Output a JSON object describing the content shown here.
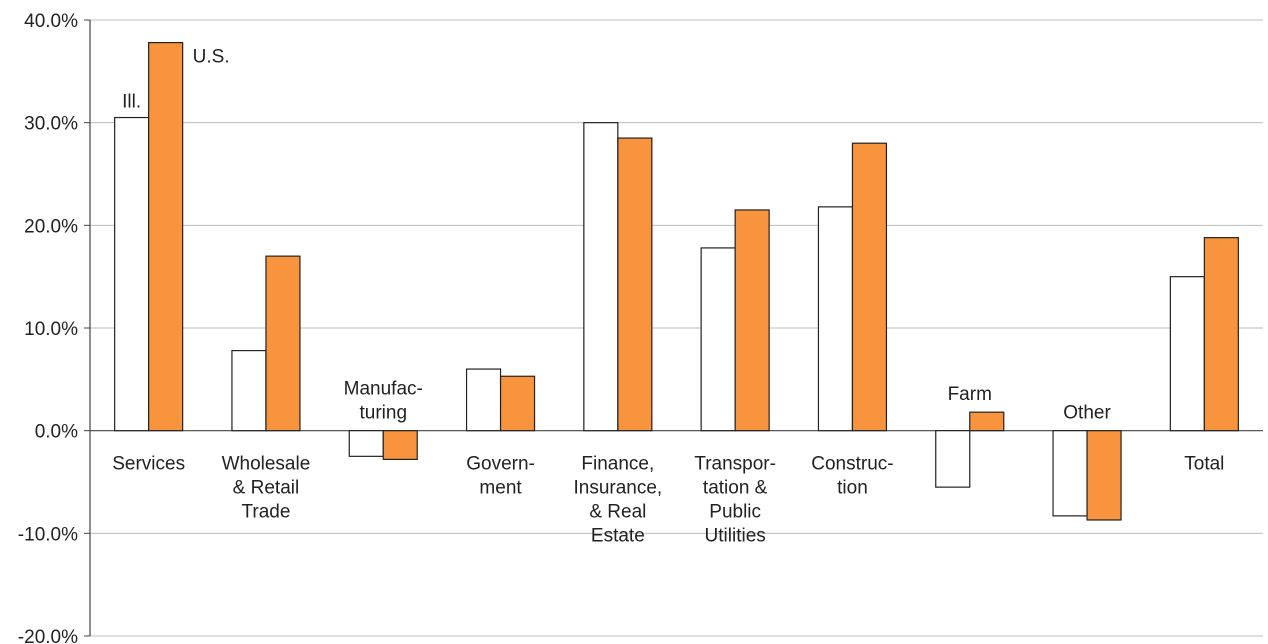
{
  "chart_data": {
    "type": "bar",
    "categories": [
      [
        "Services"
      ],
      [
        "Wholesale",
        "& Retail",
        "Trade"
      ],
      [
        "Manufac-",
        "turing"
      ],
      [
        "Govern-",
        "ment"
      ],
      [
        "Finance,",
        "Insurance,",
        "& Real",
        "Estate"
      ],
      [
        "Transpor-",
        "tation &",
        "Public",
        "Utilities"
      ],
      [
        "Construc-",
        "tion"
      ],
      [
        "Farm"
      ],
      [
        "Other"
      ],
      [
        "Total"
      ]
    ],
    "category_label_placement": [
      "below",
      "below",
      "above",
      "below",
      "below",
      "below",
      "below",
      "above",
      "above",
      "below"
    ],
    "series": [
      {
        "name": "Ill.",
        "color": "#ffffff",
        "values": [
          30.5,
          7.8,
          -2.5,
          6.0,
          30.0,
          17.8,
          21.8,
          -5.5,
          -8.3,
          15.0
        ]
      },
      {
        "name": "U.S.",
        "color": "#f7943d",
        "values": [
          37.8,
          17.0,
          -2.8,
          5.3,
          28.5,
          21.5,
          28.0,
          1.8,
          -8.7,
          18.8
        ]
      }
    ],
    "ylim": [
      -20,
      40
    ],
    "yticks": [
      -20,
      -10,
      0,
      10,
      20,
      30,
      40
    ],
    "ytick_labels": [
      "-20.0%",
      "-10.0%",
      "0.0%",
      "10.0%",
      "20.0%",
      "30.0%",
      "40.0%"
    ],
    "grid": true,
    "legend": "inline labels above first category"
  }
}
